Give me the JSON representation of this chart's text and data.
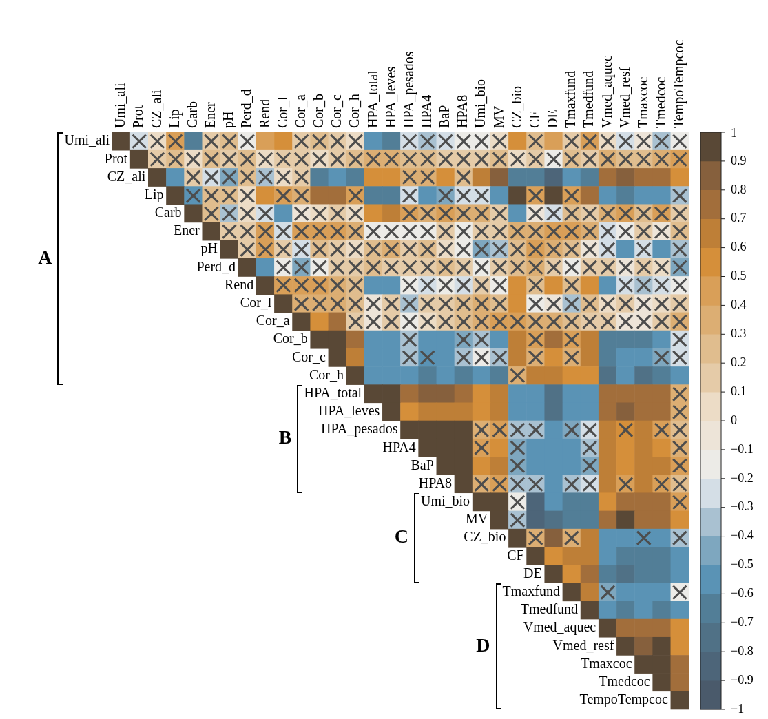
{
  "chart_data": {
    "type": "heatmap",
    "categories": [
      "Umi_ali",
      "Prot",
      "CZ_ali",
      "Lip",
      "Carb",
      "Ener",
      "pH",
      "Perd_d",
      "Rend",
      "Cor_l",
      "Cor_a",
      "Cor_b",
      "Cor_c",
      "Cor_h",
      "HPA_total",
      "HPA_leves",
      "HPA_pesados",
      "HPA4",
      "BaP",
      "HPA8",
      "Umi_bio",
      "MV",
      "CZ_bio",
      "CF",
      "DE",
      "Tmaxfund",
      "Tmedfund",
      "Vmed_aquec",
      "Vmed_resf",
      "Tmaxcoc",
      "Tmedcoc",
      "TempoTempcoc"
    ],
    "y_categories": [
      "Umi_ali",
      "Prot",
      "CZ_ali",
      "Lip",
      "Carb",
      "Ener",
      "pH",
      "Perd_d",
      "Rend",
      "Cor_l",
      "Cor_a",
      "Cor_b",
      "Cor_c",
      "Cor_h",
      "HPA_total",
      "HPA_leves",
      "HPA_pesados",
      "HPA4",
      "BaP",
      "HPA8",
      "Umi_bio",
      "MV",
      "CZ_bio",
      "CF",
      "DE",
      "Tmaxfund",
      "Tmedfund",
      "Vmed_aquec",
      "Vmed_resf",
      "Tmaxcoc",
      "Tmedcoc",
      "TempoTempcoc"
    ],
    "cells": [
      [
        1,
        -0.3,
        0.05,
        0.45,
        -0.7,
        0.15,
        0.2,
        -0.15,
        0.45,
        0.55,
        0.15,
        0.2,
        0.15,
        0.05,
        -0.55,
        -0.65,
        -0.25,
        -0.35,
        -0.25,
        -0.15,
        -0.15,
        0.05,
        0.55,
        0.2,
        0.45,
        0.15,
        0.4,
        0.05,
        -0.25,
        -0.05,
        -0.35,
        -0.15
      ],
      [
        null,
        1,
        0.15,
        0.25,
        0.05,
        0.2,
        0.15,
        0.25,
        0.05,
        0.1,
        0.1,
        0.05,
        0.15,
        0.2,
        0.35,
        0.3,
        0.25,
        0.2,
        0.15,
        0.15,
        0.1,
        0.2,
        0.05,
        0.15,
        -0.15,
        0.2,
        0.15,
        0.3,
        0.25,
        0.2,
        0.3,
        0.45
      ],
      [
        null,
        null,
        1,
        -0.6,
        0.15,
        -0.25,
        -0.45,
        0.2,
        -0.35,
        0.05,
        0.15,
        -0.65,
        -0.6,
        -0.7,
        0.55,
        0.55,
        0.3,
        0.3,
        0.55,
        0.25,
        0.6,
        0.85,
        -0.65,
        -0.65,
        -0.8,
        -0.55,
        -0.7,
        0.7,
        0.8,
        0.7,
        0.7,
        0.55
      ],
      [
        null,
        null,
        null,
        1,
        -0.55,
        0.25,
        0.2,
        0.05,
        0.55,
        0.4,
        0.35,
        0.7,
        0.7,
        0.4,
        -0.65,
        -0.65,
        -0.3,
        -0.55,
        -0.5,
        -0.3,
        -0.3,
        -0.55,
        0.9,
        0.4,
        0.9,
        0.4,
        0.75,
        -0.6,
        -0.65,
        -0.6,
        -0.6,
        -0.4
      ],
      [
        null,
        null,
        null,
        null,
        1,
        0.2,
        -0.35,
        0.05,
        -0.3,
        -0.55,
        -0.1,
        0.05,
        0.1,
        0.05,
        0.55,
        0.6,
        0.4,
        0.35,
        0.4,
        0.35,
        0.3,
        0.1,
        -0.6,
        -0.1,
        -0.3,
        0.2,
        0.15,
        0.3,
        0.4,
        0.2,
        0.4,
        0.15
      ],
      [
        null,
        null,
        null,
        null,
        null,
        1,
        0.1,
        0.15,
        0.45,
        -0.3,
        0.4,
        0.45,
        0.4,
        0.3,
        -0.2,
        -0.15,
        -0.2,
        -0.15,
        0.1,
        -0.2,
        0.15,
        0.1,
        0.35,
        0.35,
        0.4,
        0.4,
        0.35,
        -0.3,
        -0.15,
        0.15,
        -0.1,
        0.2
      ],
      [
        null,
        null,
        null,
        null,
        null,
        null,
        1,
        0.15,
        0.4,
        0.1,
        -0.3,
        0.2,
        0.1,
        0.05,
        0.2,
        0.35,
        0.1,
        0.2,
        0.05,
        -0.15,
        -0.45,
        -0.4,
        0.2,
        0.4,
        0.35,
        0.2,
        -0.1,
        -0.3,
        -0.55,
        -0.3,
        -0.6,
        -0.35
      ],
      [
        null,
        null,
        null,
        null,
        null,
        null,
        null,
        1,
        -0.55,
        -0.15,
        -0.45,
        -0.2,
        0.15,
        0.1,
        0.2,
        0.1,
        0.15,
        0.1,
        0.2,
        0.15,
        -0.2,
        0.1,
        0.25,
        0.3,
        0.15,
        -0.15,
        0.1,
        0.15,
        -0.1,
        0.1,
        0.05,
        -0.45
      ],
      [
        null,
        null,
        null,
        null,
        null,
        null,
        null,
        null,
        1,
        0.4,
        0.45,
        0.4,
        0.35,
        0.2,
        -0.55,
        -0.55,
        -0.2,
        -0.3,
        -0.15,
        -0.3,
        0.1,
        -0.2,
        0.55,
        0.2,
        0.55,
        0.2,
        0.5,
        -0.55,
        -0.3,
        -0.35,
        -0.3,
        -0.15
      ],
      [
        null,
        null,
        null,
        null,
        null,
        null,
        null,
        null,
        null,
        1,
        0.3,
        0.35,
        0.3,
        0.2,
        -0.1,
        0.1,
        -0.35,
        0.1,
        0.15,
        0.2,
        0.3,
        0.2,
        0.55,
        -0.15,
        -0.1,
        -0.35,
        0.2,
        0.05,
        0.15,
        -0.1,
        0.05,
        0.15
      ],
      [
        null,
        null,
        null,
        null,
        null,
        null,
        null,
        null,
        null,
        null,
        1,
        0.55,
        0.7,
        0.15,
        -0.1,
        0.1,
        -0.15,
        0.05,
        0.15,
        0.2,
        0.3,
        0.4,
        0.45,
        0.3,
        0.35,
        0.2,
        0.1,
        0.1,
        -0.1,
        -0.05,
        0.1,
        0.3
      ],
      [
        null,
        null,
        null,
        null,
        null,
        null,
        null,
        null,
        null,
        null,
        null,
        1,
        0.95,
        0.7,
        -0.6,
        -0.6,
        -0.4,
        -0.6,
        -0.6,
        -0.45,
        -0.4,
        -0.55,
        0.6,
        0.45,
        0.7,
        0.4,
        0.6,
        -0.7,
        -0.65,
        -0.7,
        -0.6,
        -0.3
      ],
      [
        null,
        null,
        null,
        null,
        null,
        null,
        null,
        null,
        null,
        null,
        null,
        null,
        1,
        0.6,
        -0.55,
        -0.55,
        -0.4,
        -0.55,
        -0.55,
        -0.4,
        -0.2,
        -0.35,
        0.6,
        0.35,
        0.55,
        0.35,
        0.65,
        -0.65,
        -0.55,
        -0.55,
        -0.45,
        -0.3
      ],
      [
        null,
        null,
        null,
        null,
        null,
        null,
        null,
        null,
        null,
        null,
        null,
        null,
        null,
        1,
        -0.55,
        -0.55,
        -0.55,
        -0.65,
        -0.6,
        -0.7,
        -0.6,
        -0.7,
        0.35,
        0.65,
        0.65,
        0.55,
        0.55,
        -0.75,
        -0.6,
        -0.75,
        -0.65,
        -0.55
      ],
      [
        null,
        null,
        null,
        null,
        null,
        null,
        null,
        null,
        null,
        null,
        null,
        null,
        null,
        null,
        1,
        0.95,
        0.7,
        0.8,
        0.8,
        0.7,
        0.55,
        0.65,
        -0.55,
        -0.6,
        -0.75,
        -0.55,
        -0.6,
        0.7,
        0.7,
        0.7,
        0.7,
        0.3
      ],
      [
        null,
        null,
        null,
        null,
        null,
        null,
        null,
        null,
        null,
        null,
        null,
        null,
        null,
        null,
        null,
        1,
        0.55,
        0.65,
        0.6,
        0.6,
        0.55,
        0.65,
        -0.55,
        -0.6,
        -0.75,
        -0.55,
        -0.6,
        0.7,
        0.8,
        0.7,
        0.7,
        0.35
      ],
      [
        null,
        null,
        null,
        null,
        null,
        null,
        null,
        null,
        null,
        null,
        null,
        null,
        null,
        null,
        null,
        null,
        1,
        0.95,
        0.95,
        0.95,
        0.35,
        0.45,
        -0.35,
        -0.4,
        -0.55,
        -0.45,
        -0.3,
        0.6,
        0.55,
        0.6,
        0.45,
        0.25
      ],
      [
        null,
        null,
        null,
        null,
        null,
        null,
        null,
        null,
        null,
        null,
        null,
        null,
        null,
        null,
        null,
        null,
        null,
        1,
        0.95,
        0.95,
        0.45,
        0.55,
        -0.45,
        -0.55,
        -0.6,
        -0.55,
        -0.4,
        0.65,
        0.55,
        0.65,
        0.5,
        0.35
      ],
      [
        null,
        null,
        null,
        null,
        null,
        null,
        null,
        null,
        null,
        null,
        null,
        null,
        null,
        null,
        null,
        null,
        null,
        null,
        1,
        0.95,
        0.55,
        0.65,
        -0.45,
        -0.6,
        -0.6,
        -0.55,
        -0.45,
        0.65,
        0.55,
        0.6,
        0.6,
        0.4
      ],
      [
        null,
        null,
        null,
        null,
        null,
        null,
        null,
        null,
        null,
        null,
        null,
        null,
        null,
        null,
        null,
        null,
        null,
        null,
        null,
        1,
        0.35,
        0.45,
        -0.35,
        -0.4,
        -0.55,
        -0.35,
        -0.3,
        0.6,
        0.4,
        0.6,
        0.4,
        0.25
      ],
      [
        null,
        null,
        null,
        null,
        null,
        null,
        null,
        null,
        null,
        null,
        null,
        null,
        null,
        null,
        null,
        null,
        null,
        null,
        null,
        null,
        1,
        0.95,
        -0.15,
        -0.8,
        -0.55,
        -0.7,
        -0.65,
        0.55,
        0.75,
        0.7,
        0.7,
        0.4
      ],
      [
        null,
        null,
        null,
        null,
        null,
        null,
        null,
        null,
        null,
        null,
        null,
        null,
        null,
        null,
        null,
        null,
        null,
        null,
        null,
        null,
        null,
        1,
        -0.35,
        -0.8,
        -0.75,
        -0.7,
        -0.7,
        0.7,
        0.9,
        0.75,
        0.75,
        0.55
      ],
      [
        null,
        null,
        null,
        null,
        null,
        null,
        null,
        null,
        null,
        null,
        null,
        null,
        null,
        null,
        null,
        null,
        null,
        null,
        null,
        null,
        null,
        null,
        1,
        0.3,
        0.8,
        0.35,
        0.6,
        -0.6,
        -0.55,
        -0.55,
        -0.55,
        -0.4
      ],
      [
        null,
        null,
        null,
        null,
        null,
        null,
        null,
        null,
        null,
        null,
        null,
        null,
        null,
        null,
        null,
        null,
        null,
        null,
        null,
        null,
        null,
        null,
        null,
        1,
        0.55,
        0.65,
        0.6,
        -0.55,
        -0.7,
        -0.7,
        -0.7,
        -0.55
      ],
      [
        null,
        null,
        null,
        null,
        null,
        null,
        null,
        null,
        null,
        null,
        null,
        null,
        null,
        null,
        null,
        null,
        null,
        null,
        null,
        null,
        null,
        null,
        null,
        null,
        1,
        0.55,
        0.75,
        -0.7,
        -0.75,
        -0.65,
        -0.65,
        -0.55
      ],
      [
        null,
        null,
        null,
        null,
        null,
        null,
        null,
        null,
        null,
        null,
        null,
        null,
        null,
        null,
        null,
        null,
        null,
        null,
        null,
        null,
        null,
        null,
        null,
        null,
        null,
        1,
        0.6,
        -0.45,
        -0.6,
        -0.6,
        -0.6,
        -0.15
      ],
      [
        null,
        null,
        null,
        null,
        null,
        null,
        null,
        null,
        null,
        null,
        null,
        null,
        null,
        null,
        null,
        null,
        null,
        null,
        null,
        null,
        null,
        null,
        null,
        null,
        null,
        null,
        1,
        -0.6,
        -0.65,
        -0.6,
        -0.7,
        -0.6
      ],
      [
        null,
        null,
        null,
        null,
        null,
        null,
        null,
        null,
        null,
        null,
        null,
        null,
        null,
        null,
        null,
        null,
        null,
        null,
        null,
        null,
        null,
        null,
        null,
        null,
        null,
        null,
        null,
        1,
        0.7,
        0.75,
        0.7,
        0.55
      ],
      [
        null,
        null,
        null,
        null,
        null,
        null,
        null,
        null,
        null,
        null,
        null,
        null,
        null,
        null,
        null,
        null,
        null,
        null,
        null,
        null,
        null,
        null,
        null,
        null,
        null,
        null,
        null,
        null,
        1,
        0.8,
        0.95,
        0.55
      ],
      [
        null,
        null,
        null,
        null,
        null,
        null,
        null,
        null,
        null,
        null,
        null,
        null,
        null,
        null,
        null,
        null,
        null,
        null,
        null,
        null,
        null,
        null,
        null,
        null,
        null,
        null,
        null,
        null,
        null,
        1,
        0.95,
        0.7
      ],
      [
        null,
        null,
        null,
        null,
        null,
        null,
        null,
        null,
        null,
        null,
        null,
        null,
        null,
        null,
        null,
        null,
        null,
        null,
        null,
        null,
        null,
        null,
        null,
        null,
        null,
        null,
        null,
        null,
        null,
        null,
        1,
        0.7
      ],
      [
        null,
        null,
        null,
        null,
        null,
        null,
        null,
        null,
        null,
        null,
        null,
        null,
        null,
        null,
        null,
        null,
        null,
        null,
        null,
        null,
        null,
        null,
        null,
        null,
        null,
        null,
        null,
        null,
        null,
        null,
        null,
        1
      ]
    ],
    "cell_labels": [
      [
        null,
        "×",
        "×",
        "×",
        null,
        "×",
        "×",
        "×",
        null,
        null,
        "×",
        "×",
        "×",
        "×",
        null,
        null,
        "×",
        "×",
        "×",
        "×",
        "×",
        "×",
        null,
        "×",
        null,
        "×",
        "×",
        "×",
        "×",
        "×",
        "×",
        "×"
      ],
      [
        null,
        null,
        "×",
        "×",
        "×",
        "×",
        "×",
        "×",
        "×",
        "×",
        "×",
        "×",
        "×",
        "×",
        "×",
        "×",
        "×",
        "×",
        "×",
        "×",
        "×",
        "×",
        "×",
        "×",
        "×",
        "×",
        "×",
        "×",
        "×",
        "×",
        "×",
        "×"
      ],
      [
        null,
        null,
        null,
        null,
        "×",
        "×",
        "×",
        "×",
        "×",
        "×",
        "×",
        null,
        null,
        null,
        null,
        null,
        "×",
        "×",
        null,
        "×",
        null,
        null,
        null,
        null,
        null,
        null,
        null,
        null,
        null,
        null,
        null,
        null
      ],
      [
        null,
        null,
        null,
        null,
        "×",
        "×",
        "×",
        "×",
        null,
        "×",
        "×",
        null,
        null,
        "×",
        null,
        null,
        "×",
        null,
        "×",
        "×",
        "×",
        null,
        null,
        "×",
        null,
        "×",
        null,
        null,
        null,
        null,
        null,
        "×"
      ],
      [
        null,
        null,
        null,
        null,
        null,
        "×",
        "×",
        "×",
        "×",
        null,
        "×",
        "×",
        "×",
        "×",
        null,
        null,
        "×",
        "×",
        "×",
        "×",
        "×",
        "×",
        null,
        "×",
        "×",
        "×",
        "×",
        "×",
        "×",
        "×",
        "×",
        "×"
      ],
      [
        null,
        null,
        null,
        null,
        null,
        null,
        "×",
        "×",
        "×",
        "×",
        "×",
        "×",
        "×",
        "×",
        "×",
        "×",
        "×",
        "×",
        "×",
        "×",
        "×",
        "×",
        "×",
        "×",
        "×",
        "×",
        "×",
        "×",
        "×",
        "×",
        "×",
        "×"
      ],
      [
        null,
        null,
        null,
        null,
        null,
        null,
        null,
        "×",
        "×",
        "×",
        "×",
        "×",
        "×",
        "×",
        "×",
        "×",
        "×",
        "×",
        "×",
        "×",
        "×",
        "×",
        "×",
        "×",
        "×",
        "×",
        "×",
        "×",
        null,
        "×",
        null,
        "×"
      ],
      [
        null,
        null,
        null,
        null,
        null,
        null,
        null,
        null,
        null,
        "×",
        "×",
        "×",
        "×",
        "×",
        "×",
        "×",
        "×",
        "×",
        "×",
        "×",
        "×",
        "×",
        "×",
        "×",
        "×",
        "×",
        "×",
        "×",
        "×",
        "×",
        "×",
        "×"
      ],
      [
        null,
        null,
        null,
        null,
        null,
        null,
        null,
        null,
        null,
        "×",
        "×",
        "×",
        "×",
        "×",
        null,
        null,
        "×",
        "×",
        "×",
        "×",
        "×",
        "×",
        null,
        "×",
        null,
        "×",
        null,
        null,
        "×",
        "×",
        "×",
        "×"
      ],
      [
        null,
        null,
        null,
        null,
        null,
        null,
        null,
        null,
        null,
        null,
        "×",
        "×",
        "×",
        "×",
        "×",
        "×",
        "×",
        "×",
        "×",
        "×",
        "×",
        "×",
        null,
        "×",
        "×",
        "×",
        "×",
        "×",
        "×",
        "×",
        "×",
        "×"
      ],
      [
        null,
        null,
        null,
        null,
        null,
        null,
        null,
        null,
        null,
        null,
        null,
        null,
        null,
        "×",
        "×",
        "×",
        "×",
        "×",
        "×",
        "×",
        "×",
        "×",
        "×",
        "×",
        "×",
        "×",
        "×",
        "×",
        "×",
        "×",
        "×",
        "×"
      ],
      [
        null,
        null,
        null,
        null,
        null,
        null,
        null,
        null,
        null,
        null,
        null,
        null,
        null,
        null,
        null,
        null,
        "×",
        null,
        null,
        "×",
        "×",
        null,
        null,
        "×",
        null,
        "×",
        null,
        null,
        null,
        null,
        null,
        "×"
      ],
      [
        null,
        null,
        null,
        null,
        null,
        null,
        null,
        null,
        null,
        null,
        null,
        null,
        null,
        null,
        null,
        null,
        "×",
        "×",
        null,
        "×",
        "×",
        "×",
        null,
        "×",
        null,
        "×",
        null,
        null,
        null,
        null,
        "×",
        "×"
      ],
      [
        null,
        null,
        null,
        null,
        null,
        null,
        null,
        null,
        null,
        null,
        null,
        null,
        null,
        null,
        null,
        null,
        null,
        null,
        null,
        null,
        null,
        null,
        "×",
        null,
        null,
        null,
        null,
        null,
        null,
        null,
        null,
        null
      ],
      [
        null,
        null,
        null,
        null,
        null,
        null,
        null,
        null,
        null,
        null,
        null,
        null,
        null,
        null,
        null,
        null,
        null,
        null,
        null,
        null,
        null,
        null,
        null,
        null,
        null,
        null,
        null,
        null,
        null,
        null,
        null,
        "×"
      ],
      [
        null,
        null,
        null,
        null,
        null,
        null,
        null,
        null,
        null,
        null,
        null,
        null,
        null,
        null,
        null,
        null,
        null,
        null,
        null,
        null,
        null,
        null,
        null,
        null,
        null,
        null,
        null,
        null,
        null,
        null,
        null,
        "×"
      ],
      [
        null,
        null,
        null,
        null,
        null,
        null,
        null,
        null,
        null,
        null,
        null,
        null,
        null,
        null,
        null,
        null,
        null,
        null,
        null,
        null,
        "×",
        "×",
        "×",
        "×",
        null,
        "×",
        "×",
        null,
        "×",
        null,
        "×",
        "×"
      ],
      [
        null,
        null,
        null,
        null,
        null,
        null,
        null,
        null,
        null,
        null,
        null,
        null,
        null,
        null,
        null,
        null,
        null,
        null,
        null,
        null,
        "×",
        null,
        "×",
        null,
        null,
        null,
        "×",
        null,
        null,
        null,
        null,
        "×"
      ],
      [
        null,
        null,
        null,
        null,
        null,
        null,
        null,
        null,
        null,
        null,
        null,
        null,
        null,
        null,
        null,
        null,
        null,
        null,
        null,
        null,
        null,
        null,
        "×",
        null,
        null,
        null,
        "×",
        null,
        null,
        null,
        null,
        "×"
      ],
      [
        null,
        null,
        null,
        null,
        null,
        null,
        null,
        null,
        null,
        null,
        null,
        null,
        null,
        null,
        null,
        null,
        null,
        null,
        null,
        null,
        "×",
        "×",
        "×",
        "×",
        null,
        "×",
        "×",
        null,
        "×",
        null,
        "×",
        "×"
      ],
      [
        null,
        null,
        null,
        null,
        null,
        null,
        null,
        null,
        null,
        null,
        null,
        null,
        null,
        null,
        null,
        null,
        null,
        null,
        null,
        null,
        null,
        null,
        "×",
        null,
        null,
        null,
        null,
        null,
        null,
        null,
        null,
        "×"
      ],
      [
        null,
        null,
        null,
        null,
        null,
        null,
        null,
        null,
        null,
        null,
        null,
        null,
        null,
        null,
        null,
        null,
        null,
        null,
        null,
        null,
        null,
        null,
        "×",
        null,
        null,
        null,
        null,
        null,
        null,
        null,
        null,
        null
      ],
      [
        null,
        null,
        null,
        null,
        null,
        null,
        null,
        null,
        null,
        null,
        null,
        null,
        null,
        null,
        null,
        null,
        null,
        null,
        null,
        null,
        null,
        null,
        null,
        "×",
        null,
        "×",
        null,
        null,
        null,
        "×",
        null,
        "×"
      ],
      [
        null,
        null,
        null,
        null,
        null,
        null,
        null,
        null,
        null,
        null,
        null,
        null,
        null,
        null,
        null,
        null,
        null,
        null,
        null,
        null,
        null,
        null,
        null,
        null,
        null,
        null,
        null,
        null,
        null,
        null,
        null,
        null
      ],
      [
        null,
        null,
        null,
        null,
        null,
        null,
        null,
        null,
        null,
        null,
        null,
        null,
        null,
        null,
        null,
        null,
        null,
        null,
        null,
        null,
        null,
        null,
        null,
        null,
        null,
        null,
        null,
        null,
        null,
        null,
        null,
        null
      ],
      [
        null,
        null,
        null,
        null,
        null,
        null,
        null,
        null,
        null,
        null,
        null,
        null,
        null,
        null,
        null,
        null,
        null,
        null,
        null,
        null,
        null,
        null,
        null,
        null,
        null,
        null,
        null,
        "×",
        null,
        null,
        null,
        "×"
      ],
      [
        null,
        null,
        null,
        null,
        null,
        null,
        null,
        null,
        null,
        null,
        null,
        null,
        null,
        null,
        null,
        null,
        null,
        null,
        null,
        null,
        null,
        null,
        null,
        null,
        null,
        null,
        null,
        null,
        null,
        null,
        null,
        null
      ],
      [
        null,
        null,
        null,
        null,
        null,
        null,
        null,
        null,
        null,
        null,
        null,
        null,
        null,
        null,
        null,
        null,
        null,
        null,
        null,
        null,
        null,
        null,
        null,
        null,
        null,
        null,
        null,
        null,
        null,
        null,
        null,
        null
      ],
      [
        null,
        null,
        null,
        null,
        null,
        null,
        null,
        null,
        null,
        null,
        null,
        null,
        null,
        null,
        null,
        null,
        null,
        null,
        null,
        null,
        null,
        null,
        null,
        null,
        null,
        null,
        null,
        null,
        null,
        null,
        null,
        null
      ],
      [
        null,
        null,
        null,
        null,
        null,
        null,
        null,
        null,
        null,
        null,
        null,
        null,
        null,
        null,
        null,
        null,
        null,
        null,
        null,
        null,
        null,
        null,
        null,
        null,
        null,
        null,
        null,
        null,
        null,
        null,
        null,
        null
      ],
      [
        null,
        null,
        null,
        null,
        null,
        null,
        null,
        null,
        null,
        null,
        null,
        null,
        null,
        null,
        null,
        null,
        null,
        null,
        null,
        null,
        null,
        null,
        null,
        null,
        null,
        null,
        null,
        null,
        null,
        null,
        null,
        null
      ],
      [
        null,
        null,
        null,
        null,
        null,
        null,
        null,
        null,
        null,
        null,
        null,
        null,
        null,
        null,
        null,
        null,
        null,
        null,
        null,
        null,
        null,
        null,
        null,
        null,
        null,
        null,
        null,
        null,
        null,
        null,
        null,
        null
      ]
    ],
    "clim": [
      -1,
      1
    ],
    "cticks": [
      {
        "value": -1,
        "label": "−1"
      },
      {
        "value": -0.9,
        "label": "−0.9"
      },
      {
        "value": -0.8,
        "label": "−0.8"
      },
      {
        "value": -0.7,
        "label": "−0.7"
      },
      {
        "value": -0.6,
        "label": "−0.6"
      },
      {
        "value": -0.5,
        "label": "−0.5"
      },
      {
        "value": -0.4,
        "label": "−0.4"
      },
      {
        "value": -0.3,
        "label": "−0.3"
      },
      {
        "value": -0.2,
        "label": "−0.2"
      },
      {
        "value": -0.1,
        "label": "−0.1"
      },
      0,
      0.1,
      0.2,
      0.3,
      0.4,
      0.5,
      0.6,
      0.7,
      0.8,
      0.9,
      1
    ],
    "annotations": [
      "A",
      "B",
      "C",
      "D"
    ]
  }
}
